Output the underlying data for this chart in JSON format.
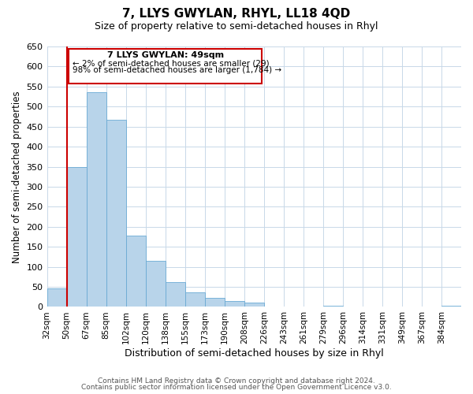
{
  "title": "7, LLYS GWYLAN, RHYL, LL18 4QD",
  "subtitle": "Size of property relative to semi-detached houses in Rhyl",
  "xlabel": "Distribution of semi-detached houses by size in Rhyl",
  "ylabel": "Number of semi-detached properties",
  "bin_labels": [
    "32sqm",
    "50sqm",
    "67sqm",
    "85sqm",
    "102sqm",
    "120sqm",
    "138sqm",
    "155sqm",
    "173sqm",
    "190sqm",
    "208sqm",
    "226sqm",
    "243sqm",
    "261sqm",
    "279sqm",
    "296sqm",
    "314sqm",
    "331sqm",
    "349sqm",
    "367sqm",
    "384sqm"
  ],
  "bar_values": [
    46,
    349,
    535,
    467,
    178,
    115,
    62,
    36,
    22,
    15,
    10,
    1,
    0,
    0,
    2,
    0,
    0,
    0,
    1,
    0,
    3
  ],
  "bar_color": "#b8d4ea",
  "bar_edge_color": "#6aaad4",
  "highlight_color": "#cc0000",
  "annotation_title": "7 LLYS GWYLAN: 49sqm",
  "annotation_line1": "← 2% of semi-detached houses are smaller (29)",
  "annotation_line2": "98% of semi-detached houses are larger (1,784) →",
  "ylim": [
    0,
    650
  ],
  "yticks": [
    0,
    50,
    100,
    150,
    200,
    250,
    300,
    350,
    400,
    450,
    500,
    550,
    600,
    650
  ],
  "footer_line1": "Contains HM Land Registry data © Crown copyright and database right 2024.",
  "footer_line2": "Contains public sector information licensed under the Open Government Licence v3.0.",
  "background_color": "#ffffff",
  "grid_color": "#c8d8e8"
}
